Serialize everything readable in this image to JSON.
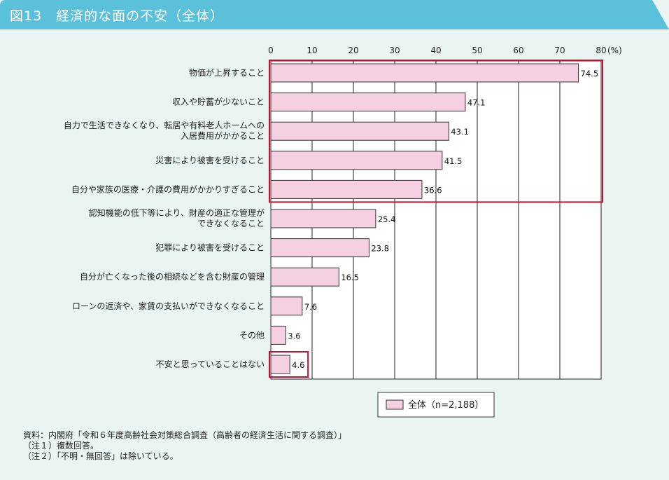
{
  "header": {
    "title": "図13　経済的な面の不安（全体）",
    "color": "#5bc0da"
  },
  "chart_data": {
    "type": "bar",
    "orientation": "horizontal",
    "unit_label": "(%)",
    "xlim": [
      0,
      80
    ],
    "ticks": [
      0,
      10,
      20,
      30,
      40,
      50,
      60,
      70,
      80
    ],
    "grid": true,
    "categories": [
      [
        "物価が上昇すること"
      ],
      [
        "収入や貯蓄が少ないこと"
      ],
      [
        "自力で生活できなくなり、転居や有料老人ホームへの",
        "入居費用がかかること"
      ],
      [
        "災害により被害を受けること"
      ],
      [
        "自分や家族の医療・介護の費用がかかりすぎること"
      ],
      [
        "認知機能の低下等により、財産の適正な管理が",
        "できなくなること"
      ],
      [
        "犯罪により被害を受けること"
      ],
      [
        "自分が亡くなった後の相続などを含む財産の管理"
      ],
      [
        "ローンの返済や、家賃の支払いができなくなること"
      ],
      [
        "その他"
      ],
      [
        "不安と思っていることはない"
      ]
    ],
    "series": [
      {
        "name": "全体（n=2,188）",
        "values": [
          74.5,
          47.1,
          43.1,
          41.5,
          36.6,
          25.4,
          23.8,
          16.5,
          7.6,
          3.6,
          4.6
        ],
        "color": "#f4d0e0"
      }
    ],
    "highlight_color": "#c8102e",
    "highlighted_groups": [
      [
        0,
        4
      ],
      [
        10,
        10
      ]
    ],
    "legend_position": "bottom"
  },
  "notes": [
    "資料：内閣府「令和６年度高齢社会対策総合調査（高齢者の経済生活に関する調査）」",
    "（注１）複数回答。",
    "（注２）「不明・無回答」は除いている。"
  ]
}
